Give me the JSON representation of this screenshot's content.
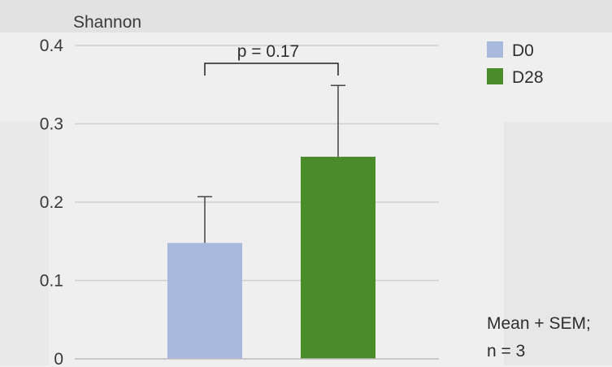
{
  "chart_data": {
    "type": "bar",
    "ylabel": "Shannon",
    "ylim": [
      0,
      0.4
    ],
    "yticks": [
      "0",
      "0.1",
      "0.2",
      "0.3",
      "0.4"
    ],
    "grid": true,
    "series": [
      {
        "name": "D0",
        "value": 0.148,
        "error": 0.059,
        "color": "#a7b9dd"
      },
      {
        "name": "D28",
        "value": 0.258,
        "error": 0.091,
        "color": "#4a8b2a"
      }
    ],
    "significance": {
      "label": "p = 0.17",
      "between": [
        "D0",
        "D28"
      ]
    },
    "legend_position": "top-right",
    "note_lines": [
      "Mean + SEM;",
      "n = 3"
    ]
  }
}
